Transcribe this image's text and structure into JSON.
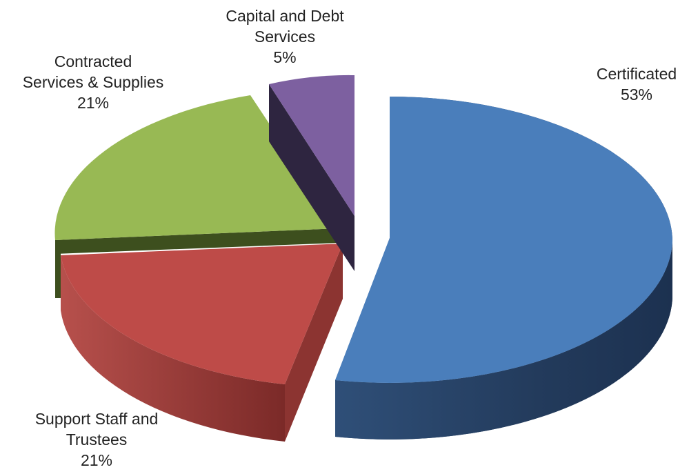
{
  "chart_data": {
    "type": "pie",
    "title": "",
    "exploded": true,
    "three_d": true,
    "slices": [
      {
        "name_lines": [
          "Certificated"
        ],
        "value": 53,
        "value_label": "53%",
        "color": "#4a7ebb"
      },
      {
        "name_lines": [
          "Support Staff and",
          "Trustees"
        ],
        "value": 21,
        "value_label": "21%",
        "color": "#be4b48"
      },
      {
        "name_lines": [
          "Contracted",
          "Services & Supplies"
        ],
        "value": 21,
        "value_label": "21%",
        "color": "#98b954"
      },
      {
        "name_lines": [
          "Capital and Debt",
          "Services"
        ],
        "value": 5,
        "value_label": "5%",
        "color": "#7d60a0"
      }
    ]
  }
}
